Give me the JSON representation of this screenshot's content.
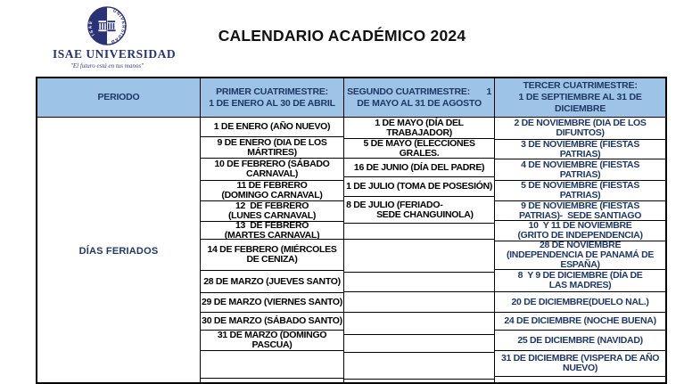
{
  "logo": {
    "seal_left_text": "ISAE",
    "seal_right_text": "UNIVERSIDAD",
    "name": "ISAE UNIVERSIDAD",
    "tagline": "\"El futuro está en tus manos\""
  },
  "title": "CALENDARIO ACADÉMICO 2024",
  "colors": {
    "header_bg": "#9dc3e6",
    "header_text": "#1f3864",
    "body_text": "#000000",
    "tercer_text": "#1f3864",
    "logo_navy": "#283275",
    "border": "#000000"
  },
  "table": {
    "header": {
      "periodo": "PERIODO",
      "primer_line1": "PRIMER CUATRIMESTRE:",
      "primer_line2": "1 DE ENERO AL 30 DE ABRIL",
      "segundo_line1": "SEGUNDO CUATRIMESTRE:",
      "segundo_line1_num": "1",
      "segundo_line2": "DE MAYO AL 31 DE AGOSTO",
      "tercer_line1": "TERCER CUATRIMESTRE:",
      "tercer_line2": "1 DE SEPTIEMBRE AL 31 DE",
      "tercer_line3": "DICIEMBRE"
    },
    "row_label": "DÍAS FERIADOS",
    "primer_cells": [
      "1 DE ENERO (AÑO NUEVO)",
      "9 DE ENERO (DIA DE LOS\nMÁRTIRES)",
      "10 DE FEBRERO (SÁBADO\nCARNAVAL)",
      "11 DE FEBRERO\n(DOMINGO CARNAVAL)",
      "12  DE FEBRERO\n(LUNES CARNAVAL)",
      "13  DE FEBRERO\n(MARTES CARNAVAL)",
      "14 DE FEBRERO (MIÉRCOLES\nDE CENIZA)",
      "28 DE MARZO (JUEVES SANTO)",
      "29 DE MARZO (VIERNES SANTO)",
      "30 DE MARZO (SÁBADO SANTO)",
      "31 DE MARZO (DOMINGO PASCUA)",
      "",
      ""
    ],
    "segundo_cells": [
      "1 DE MAYO (DÍA DEL TRABAJADOR)",
      "5 DE MAYO (ELECCIONES GRALES.",
      "16 DE JUNIO (DÍA DEL PADRE)",
      "1 DE JULIO (TOMA DE POSESIÓN)",
      "8 DE JULIO (FERIADO-\n             SEDE CHANGUINOLA)",
      "",
      "",
      "",
      "",
      "",
      "",
      "",
      ""
    ],
    "tercer_cells": [
      "2 DE NOVIEMBRE (DIA DE LOS\nDIFUNTOS)",
      "3 DE NOVIEMBRE (FIESTAS\nPATRIAS)",
      "4 DE NOVIEMBRE (FIESTAS\nPATRIAS)",
      "5 DE NOVIEMBRE (FIESTAS\nPATRIAS)",
      "9 DE NOVIEMBRE (FIESTAS\nPATRIAS)-  SEDE SANTIAGO",
      "10  Y 11 DE NOVIEMBRE\n(GRITO DE INDEPENDENCIA)",
      "28 DE NOVIEMBRE\n(INDEPENDENCIA DE PANAMÁ DE\nESPAÑA)",
      "8  Y 9 DE DICIEMBRE (DÍA DE\nLAS MADRES)",
      "20 DE DICIEMBRE(DUELO NAL.)",
      "24 DE DICIEMBRE (NOCHE BUENA)",
      "25 DE DICIEMBRE (NAVIDAD)",
      "31 DE DICIEMBRE (VISPERA DE AÑO\nNUEVO)",
      ""
    ]
  }
}
